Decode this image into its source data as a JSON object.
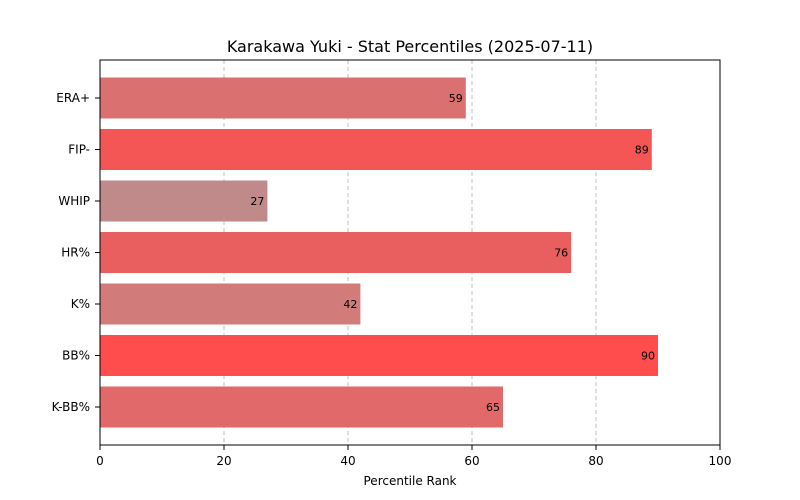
{
  "chart_data": {
    "type": "bar",
    "orientation": "horizontal",
    "title": "Karakawa Yuki - Stat Percentiles (2025-07-11)",
    "xlabel": "Percentile Rank",
    "ylabel": "",
    "xlim": [
      0,
      100
    ],
    "xticks": [
      0,
      20,
      40,
      60,
      80,
      100
    ],
    "grid": "x-dashed",
    "categories": [
      "ERA+",
      "FIP-",
      "WHIP",
      "HR%",
      "K%",
      "BB%",
      "K-BB%"
    ],
    "values": [
      59,
      89,
      27,
      76,
      42,
      90,
      65
    ],
    "colors": [
      "#db7070",
      "#f45656",
      "#c08a8a",
      "#e95f5f",
      "#d17b7b",
      "#ff4d4d",
      "#e26969"
    ]
  }
}
